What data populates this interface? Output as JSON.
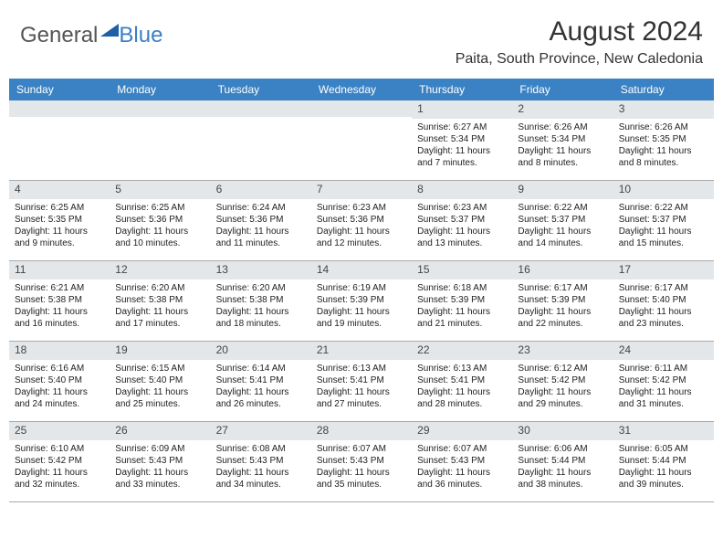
{
  "logo": {
    "text1": "General",
    "text2": "Blue",
    "triangle_color": "#1f5fa8"
  },
  "title": "August 2024",
  "location": "Paita, South Province, New Caledonia",
  "colors": {
    "header_bg": "#3b82c4",
    "strip_bg": "#e4e7ea",
    "border": "#aaaaaa"
  },
  "weekdays": [
    "Sunday",
    "Monday",
    "Tuesday",
    "Wednesday",
    "Thursday",
    "Friday",
    "Saturday"
  ],
  "first_weekday_index": 4,
  "days": [
    {
      "n": "1",
      "sr": "Sunrise: 6:27 AM",
      "ss": "Sunset: 5:34 PM",
      "d1": "Daylight: 11 hours",
      "d2": "and 7 minutes."
    },
    {
      "n": "2",
      "sr": "Sunrise: 6:26 AM",
      "ss": "Sunset: 5:34 PM",
      "d1": "Daylight: 11 hours",
      "d2": "and 8 minutes."
    },
    {
      "n": "3",
      "sr": "Sunrise: 6:26 AM",
      "ss": "Sunset: 5:35 PM",
      "d1": "Daylight: 11 hours",
      "d2": "and 8 minutes."
    },
    {
      "n": "4",
      "sr": "Sunrise: 6:25 AM",
      "ss": "Sunset: 5:35 PM",
      "d1": "Daylight: 11 hours",
      "d2": "and 9 minutes."
    },
    {
      "n": "5",
      "sr": "Sunrise: 6:25 AM",
      "ss": "Sunset: 5:36 PM",
      "d1": "Daylight: 11 hours",
      "d2": "and 10 minutes."
    },
    {
      "n": "6",
      "sr": "Sunrise: 6:24 AM",
      "ss": "Sunset: 5:36 PM",
      "d1": "Daylight: 11 hours",
      "d2": "and 11 minutes."
    },
    {
      "n": "7",
      "sr": "Sunrise: 6:23 AM",
      "ss": "Sunset: 5:36 PM",
      "d1": "Daylight: 11 hours",
      "d2": "and 12 minutes."
    },
    {
      "n": "8",
      "sr": "Sunrise: 6:23 AM",
      "ss": "Sunset: 5:37 PM",
      "d1": "Daylight: 11 hours",
      "d2": "and 13 minutes."
    },
    {
      "n": "9",
      "sr": "Sunrise: 6:22 AM",
      "ss": "Sunset: 5:37 PM",
      "d1": "Daylight: 11 hours",
      "d2": "and 14 minutes."
    },
    {
      "n": "10",
      "sr": "Sunrise: 6:22 AM",
      "ss": "Sunset: 5:37 PM",
      "d1": "Daylight: 11 hours",
      "d2": "and 15 minutes."
    },
    {
      "n": "11",
      "sr": "Sunrise: 6:21 AM",
      "ss": "Sunset: 5:38 PM",
      "d1": "Daylight: 11 hours",
      "d2": "and 16 minutes."
    },
    {
      "n": "12",
      "sr": "Sunrise: 6:20 AM",
      "ss": "Sunset: 5:38 PM",
      "d1": "Daylight: 11 hours",
      "d2": "and 17 minutes."
    },
    {
      "n": "13",
      "sr": "Sunrise: 6:20 AM",
      "ss": "Sunset: 5:38 PM",
      "d1": "Daylight: 11 hours",
      "d2": "and 18 minutes."
    },
    {
      "n": "14",
      "sr": "Sunrise: 6:19 AM",
      "ss": "Sunset: 5:39 PM",
      "d1": "Daylight: 11 hours",
      "d2": "and 19 minutes."
    },
    {
      "n": "15",
      "sr": "Sunrise: 6:18 AM",
      "ss": "Sunset: 5:39 PM",
      "d1": "Daylight: 11 hours",
      "d2": "and 21 minutes."
    },
    {
      "n": "16",
      "sr": "Sunrise: 6:17 AM",
      "ss": "Sunset: 5:39 PM",
      "d1": "Daylight: 11 hours",
      "d2": "and 22 minutes."
    },
    {
      "n": "17",
      "sr": "Sunrise: 6:17 AM",
      "ss": "Sunset: 5:40 PM",
      "d1": "Daylight: 11 hours",
      "d2": "and 23 minutes."
    },
    {
      "n": "18",
      "sr": "Sunrise: 6:16 AM",
      "ss": "Sunset: 5:40 PM",
      "d1": "Daylight: 11 hours",
      "d2": "and 24 minutes."
    },
    {
      "n": "19",
      "sr": "Sunrise: 6:15 AM",
      "ss": "Sunset: 5:40 PM",
      "d1": "Daylight: 11 hours",
      "d2": "and 25 minutes."
    },
    {
      "n": "20",
      "sr": "Sunrise: 6:14 AM",
      "ss": "Sunset: 5:41 PM",
      "d1": "Daylight: 11 hours",
      "d2": "and 26 minutes."
    },
    {
      "n": "21",
      "sr": "Sunrise: 6:13 AM",
      "ss": "Sunset: 5:41 PM",
      "d1": "Daylight: 11 hours",
      "d2": "and 27 minutes."
    },
    {
      "n": "22",
      "sr": "Sunrise: 6:13 AM",
      "ss": "Sunset: 5:41 PM",
      "d1": "Daylight: 11 hours",
      "d2": "and 28 minutes."
    },
    {
      "n": "23",
      "sr": "Sunrise: 6:12 AM",
      "ss": "Sunset: 5:42 PM",
      "d1": "Daylight: 11 hours",
      "d2": "and 29 minutes."
    },
    {
      "n": "24",
      "sr": "Sunrise: 6:11 AM",
      "ss": "Sunset: 5:42 PM",
      "d1": "Daylight: 11 hours",
      "d2": "and 31 minutes."
    },
    {
      "n": "25",
      "sr": "Sunrise: 6:10 AM",
      "ss": "Sunset: 5:42 PM",
      "d1": "Daylight: 11 hours",
      "d2": "and 32 minutes."
    },
    {
      "n": "26",
      "sr": "Sunrise: 6:09 AM",
      "ss": "Sunset: 5:43 PM",
      "d1": "Daylight: 11 hours",
      "d2": "and 33 minutes."
    },
    {
      "n": "27",
      "sr": "Sunrise: 6:08 AM",
      "ss": "Sunset: 5:43 PM",
      "d1": "Daylight: 11 hours",
      "d2": "and 34 minutes."
    },
    {
      "n": "28",
      "sr": "Sunrise: 6:07 AM",
      "ss": "Sunset: 5:43 PM",
      "d1": "Daylight: 11 hours",
      "d2": "and 35 minutes."
    },
    {
      "n": "29",
      "sr": "Sunrise: 6:07 AM",
      "ss": "Sunset: 5:43 PM",
      "d1": "Daylight: 11 hours",
      "d2": "and 36 minutes."
    },
    {
      "n": "30",
      "sr": "Sunrise: 6:06 AM",
      "ss": "Sunset: 5:44 PM",
      "d1": "Daylight: 11 hours",
      "d2": "and 38 minutes."
    },
    {
      "n": "31",
      "sr": "Sunrise: 6:05 AM",
      "ss": "Sunset: 5:44 PM",
      "d1": "Daylight: 11 hours",
      "d2": "and 39 minutes."
    }
  ]
}
